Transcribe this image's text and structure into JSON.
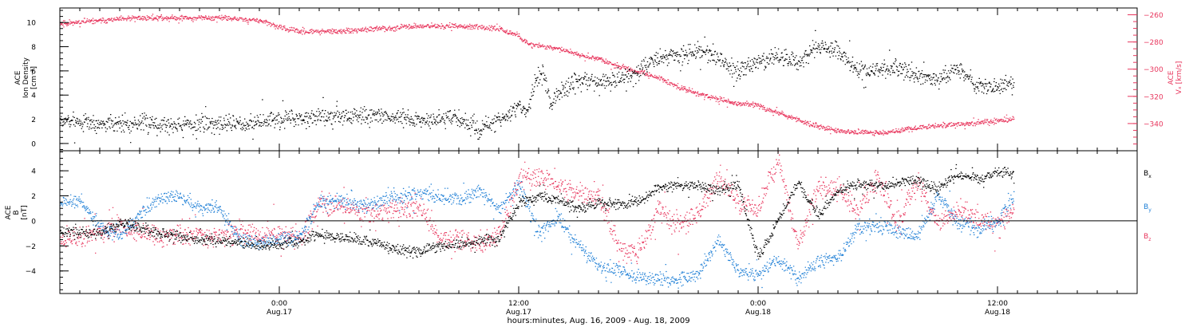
{
  "colors": {
    "black": "#000000",
    "pink": "#e8365d",
    "blue": "#1e7fd6"
  },
  "x_axis": {
    "title": "hours:minutes, Aug. 16, 2009 - Aug. 18, 2009",
    "ticks": [
      {
        "hour": 24,
        "time": "0:00",
        "date": "Aug.17"
      },
      {
        "hour": 36,
        "time": "12:00",
        "date": "Aug.17"
      },
      {
        "hour": 48,
        "time": "0:00",
        "date": "Aug.18"
      },
      {
        "hour": 60,
        "time": "12:00",
        "date": "Aug.18"
      }
    ],
    "xlim_hours": [
      13,
      67
    ]
  },
  "chart_data": [
    {
      "type": "scatter",
      "ylabel_lines": [
        "ACE",
        "Ion Density",
        "[cm⁻³]"
      ],
      "y2label_lines": [
        "ACE",
        "Vₓ [km/s]"
      ],
      "ylim": [
        -0.6,
        11.2
      ],
      "yticks": [
        0,
        2,
        4,
        6,
        8,
        10
      ],
      "y2lim": [
        -360,
        -255
      ],
      "y2ticks": [
        -340,
        -320,
        -300,
        -280,
        -260
      ],
      "x_unit": "hours since Aug. 16, 2009 0:00",
      "series": [
        {
          "name": "Ion Density",
          "axis": "left",
          "color": "#000000",
          "x": [
            13.0,
            15,
            17,
            19,
            21,
            23,
            25,
            27,
            29,
            31,
            33,
            34,
            35,
            36.0,
            36.4,
            36.8,
            37.2,
            37.6,
            38.0,
            39,
            40,
            41,
            42,
            43,
            44,
            45,
            46,
            47,
            48,
            49,
            50,
            51,
            52,
            53,
            54,
            55,
            56,
            57,
            58,
            59,
            60,
            60.8
          ],
          "y": [
            1.9,
            1.7,
            1.7,
            1.6,
            1.7,
            1.8,
            2.2,
            2.3,
            2.3,
            2.0,
            2.1,
            1.2,
            1.9,
            3.0,
            2.8,
            5.2,
            5.7,
            3.2,
            4.3,
            5.2,
            5.0,
            5.4,
            6.0,
            7.1,
            7.3,
            7.6,
            7.2,
            5.8,
            6.8,
            7.3,
            6.7,
            8.2,
            7.6,
            6.0,
            6.2,
            6.3,
            5.7,
            5.2,
            6.2,
            4.9,
            4.6,
            5.2
          ],
          "noise": 0.5
        },
        {
          "name": "Vx",
          "axis": "right",
          "color": "#e8365d",
          "x": [
            13.0,
            15,
            17,
            19,
            21,
            23,
            24,
            25,
            27,
            29,
            31,
            33,
            35,
            36.0,
            36.5,
            37,
            38,
            39,
            40,
            41,
            42,
            43,
            44,
            45,
            46,
            47,
            48,
            48.5,
            49,
            50,
            51,
            52,
            53,
            54,
            55,
            56,
            57,
            58,
            59,
            60,
            60.8
          ],
          "y": [
            -266,
            -264,
            -262,
            -262,
            -262,
            -264,
            -269,
            -272,
            -272,
            -270,
            -268,
            -268,
            -270,
            -275,
            -282,
            -282,
            -285,
            -289,
            -292,
            -298,
            -302,
            -306,
            -313,
            -318,
            -322,
            -325,
            -326,
            -330,
            -332,
            -337,
            -342,
            -345,
            -346,
            -347,
            -345,
            -343,
            -341,
            -340,
            -339,
            -338,
            -336
          ],
          "noise": 1.3
        }
      ]
    },
    {
      "type": "scatter",
      "ylabel_lines": [
        "ACE",
        "B",
        "[nT]"
      ],
      "ylim": [
        -5.8,
        5.6
      ],
      "yticks": [
        -4,
        -2,
        0,
        2,
        4
      ],
      "zero_line": true,
      "x_unit": "hours since Aug. 16, 2009 0:00",
      "series": [
        {
          "name": "Bx",
          "label_main": "B",
          "label_sub": "x",
          "color": "#000000",
          "x": [
            13.0,
            14,
            15,
            16,
            17,
            18,
            19,
            20,
            21,
            22,
            23,
            24,
            25,
            26,
            27,
            28,
            29,
            30,
            31,
            32,
            33,
            34,
            35,
            36.0,
            37,
            38,
            39,
            40,
            41,
            42,
            43,
            44,
            45,
            46,
            47,
            48,
            49,
            50,
            51,
            52,
            53,
            54,
            55,
            56,
            57,
            58,
            59,
            60,
            60.8
          ],
          "y": [
            -0.8,
            -0.9,
            -1.0,
            -0.2,
            -0.5,
            -1.0,
            -1.2,
            -1.5,
            -1.5,
            -1.7,
            -2.0,
            -1.8,
            -1.6,
            -1.0,
            -1.3,
            -1.5,
            -1.8,
            -2.3,
            -2.4,
            -2.0,
            -1.8,
            -1.6,
            -1.4,
            1.5,
            2.0,
            1.7,
            1.0,
            1.5,
            1.3,
            1.6,
            2.6,
            2.9,
            2.8,
            2.5,
            2.9,
            -3.0,
            0.2,
            3.0,
            0.5,
            2.4,
            3.0,
            2.8,
            3.1,
            3.3,
            2.5,
            3.8,
            3.3,
            4.0,
            3.8
          ],
          "noise": 0.3
        },
        {
          "name": "By",
          "label_main": "B",
          "label_sub": "y",
          "color": "#1e7fd6",
          "x": [
            13.0,
            14,
            15,
            16,
            17,
            18,
            19,
            20,
            21,
            22,
            23,
            24,
            25,
            26,
            27,
            28,
            29,
            30,
            31,
            32,
            33,
            34,
            35,
            36.0,
            37,
            38,
            39,
            40,
            41,
            42,
            43,
            44,
            45,
            46,
            47,
            48,
            49,
            50,
            51,
            52,
            53,
            54,
            55,
            56,
            57,
            58,
            59,
            60,
            60.8
          ],
          "y": [
            1.5,
            1.6,
            -0.3,
            -1.2,
            0.5,
            1.8,
            1.9,
            1.0,
            1.0,
            -1.3,
            -1.8,
            -1.5,
            -1.3,
            1.5,
            1.7,
            1.3,
            1.5,
            2.0,
            2.3,
            2.0,
            1.8,
            2.4,
            1.0,
            3.0,
            -1.0,
            0.3,
            -2.0,
            -3.5,
            -3.8,
            -4.5,
            -4.6,
            -4.7,
            -4.2,
            -1.5,
            -4.0,
            -4.2,
            -3.0,
            -4.5,
            -3.2,
            -2.9,
            -0.5,
            -0.3,
            -0.8,
            -1.2,
            2.2,
            -0.2,
            -0.6,
            0.0,
            2.0
          ],
          "noise": 0.4
        },
        {
          "name": "Bz",
          "label_main": "B",
          "label_sub": "z",
          "color": "#e8365d",
          "x": [
            13.0,
            14,
            15,
            16,
            17,
            18,
            19,
            20,
            21,
            22,
            23,
            24,
            25,
            26,
            27,
            28,
            29,
            30,
            31,
            32,
            33,
            34,
            35,
            36.0,
            37,
            38,
            39,
            40,
            41,
            42,
            43,
            44,
            45,
            46,
            47,
            48,
            49,
            50,
            51,
            52,
            53,
            54,
            55,
            56,
            57,
            58,
            59,
            60,
            60.8
          ],
          "y": [
            -1.5,
            -1.2,
            -0.8,
            -0.5,
            -1.0,
            -1.2,
            -1.0,
            -1.0,
            -1.2,
            -0.8,
            -1.2,
            -1.0,
            -1.5,
            1.4,
            1.3,
            0.8,
            0.8,
            1.0,
            1.2,
            -1.5,
            -1.3,
            -1.8,
            -1.0,
            3.3,
            3.5,
            3.0,
            2.2,
            2.0,
            -2.0,
            -2.5,
            1.0,
            -0.5,
            0.8,
            3.5,
            1.5,
            1.0,
            5.0,
            -2.0,
            2.8,
            2.6,
            1.0,
            3.5,
            -0.2,
            3.0,
            -0.3,
            1.0,
            0.3,
            -0.3,
            0.8
          ],
          "noise": 0.6
        }
      ]
    }
  ]
}
